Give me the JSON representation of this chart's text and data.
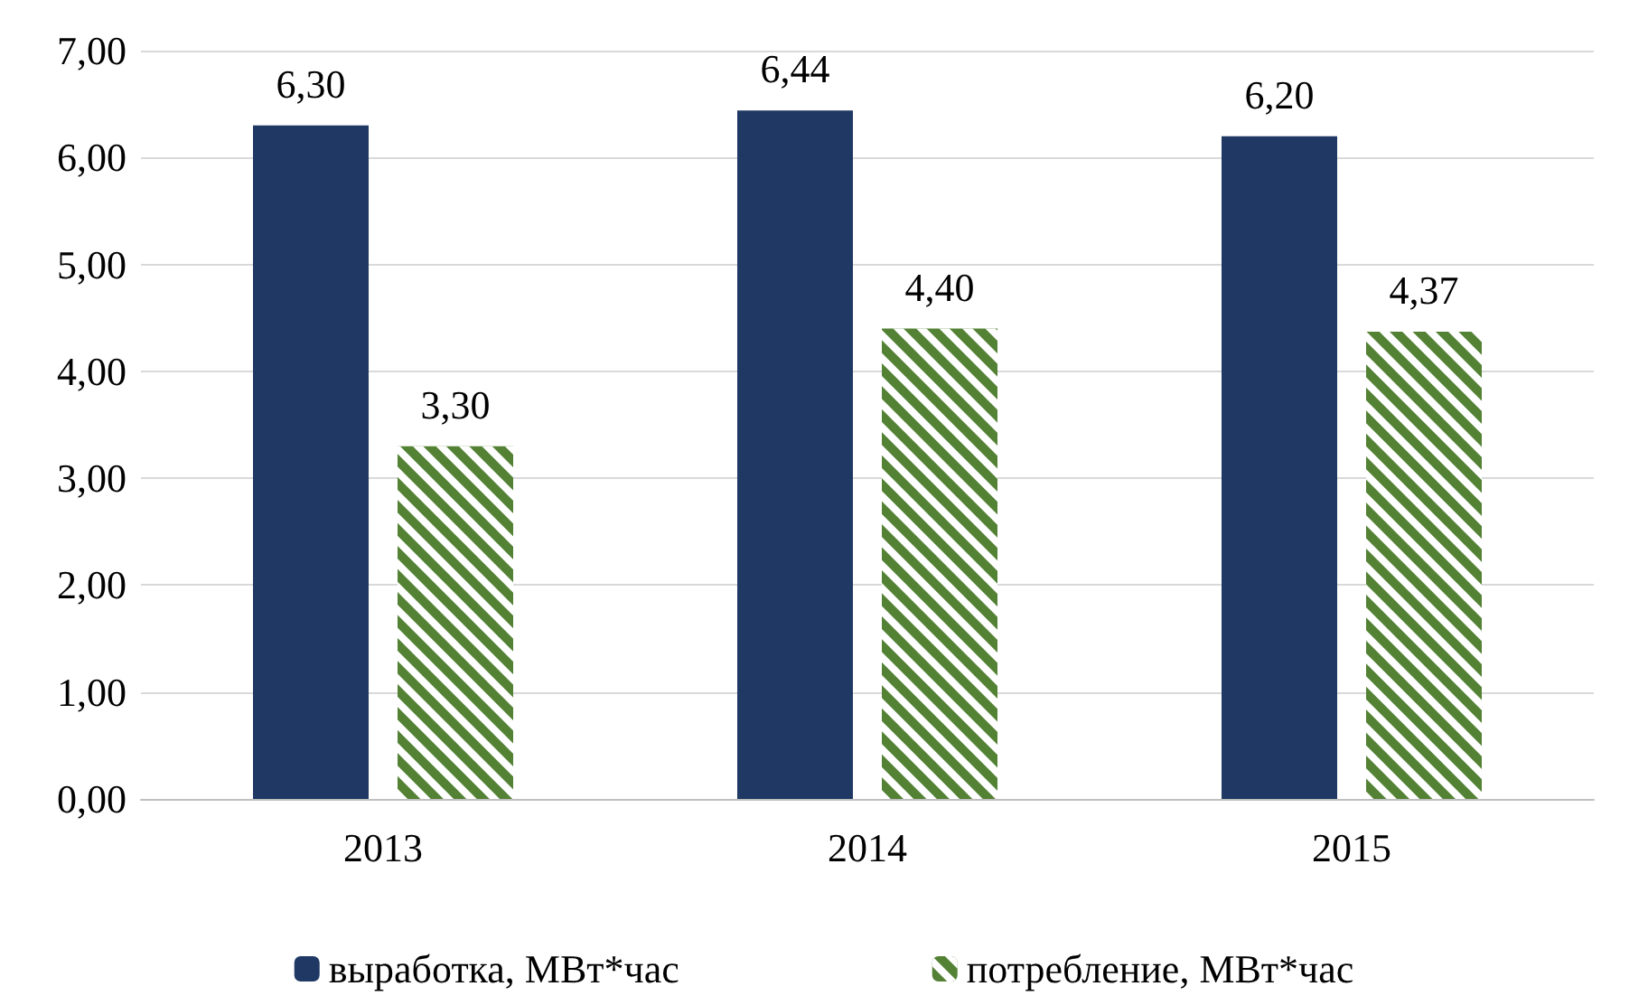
{
  "chart_data": {
    "type": "bar",
    "categories": [
      "2013",
      "2014",
      "2015"
    ],
    "series": [
      {
        "name": "выработка, МВт*час",
        "color": "#1f3864",
        "values": [
          6.3,
          6.44,
          6.2
        ],
        "value_labels": [
          "6,30",
          "6,44",
          "6,20"
        ]
      },
      {
        "name": "потребление, МВт*час",
        "color": "#548235",
        "values": [
          3.3,
          4.4,
          4.37
        ],
        "value_labels": [
          "3,30",
          "4,40",
          "4,37"
        ]
      }
    ],
    "ylim": [
      0,
      7
    ],
    "yticks": [
      {
        "value": 0,
        "label": "0,00"
      },
      {
        "value": 1,
        "label": "1,00"
      },
      {
        "value": 2,
        "label": "2,00"
      },
      {
        "value": 3,
        "label": "3,00"
      },
      {
        "value": 4,
        "label": "4,00"
      },
      {
        "value": 5,
        "label": "5,00"
      },
      {
        "value": 6,
        "label": "6,00"
      },
      {
        "value": 7,
        "label": "7,00"
      }
    ],
    "grid": "y",
    "legend": "bottom"
  }
}
